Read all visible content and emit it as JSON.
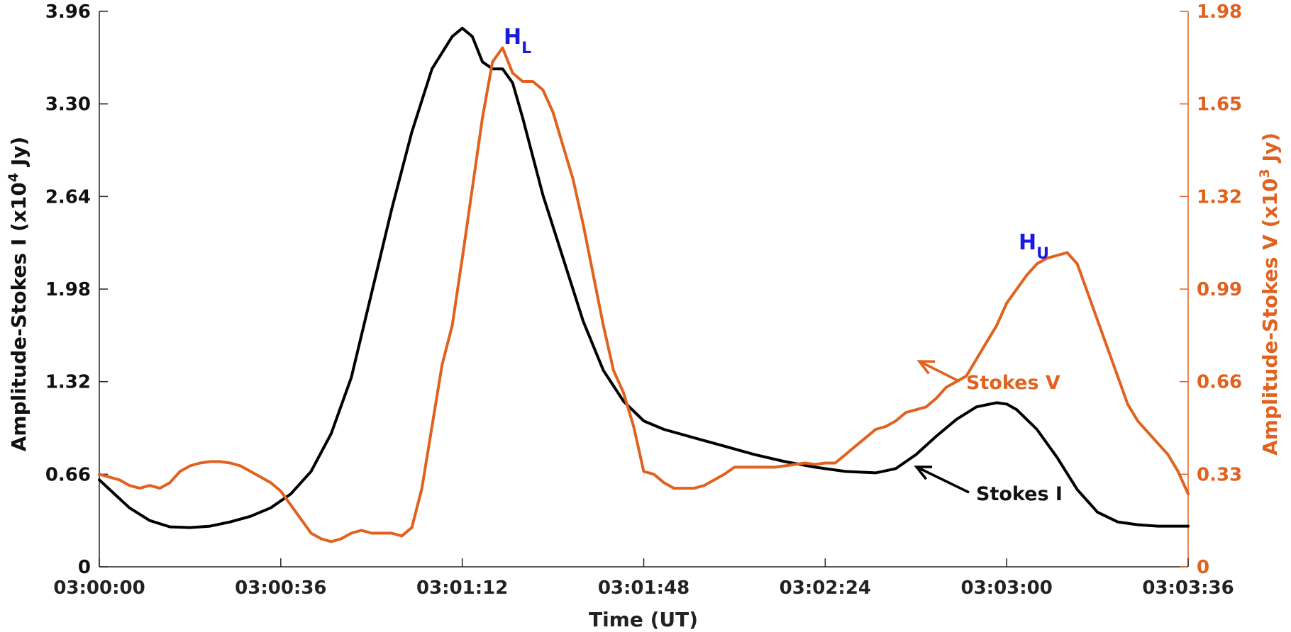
{
  "chart_data": {
    "type": "line",
    "xlabel": "Time (UT)",
    "x_ticks": [
      "03:00:00",
      "03:00:36",
      "03:01:12",
      "03:01:48",
      "03:02:24",
      "03:03:00",
      "03:03:36"
    ],
    "x_range_seconds": [
      0,
      216
    ],
    "y_left": {
      "label_main": "Amplitude-Stokes I (x10",
      "label_exp": "4",
      "label_tail": " Jy)",
      "ticks": [
        "0",
        "0.66",
        "1.32",
        "1.98",
        "2.64",
        "3.30",
        "3.96"
      ],
      "range": [
        0,
        3.96
      ]
    },
    "y_right": {
      "label_main": "Amplitude-Stokes V (x10",
      "label_exp": "3",
      "label_tail": " Jy)",
      "ticks": [
        "0",
        "0.33",
        "0.66",
        "0.99",
        "1.32",
        "1.65",
        "1.98"
      ],
      "range": [
        0,
        1.98
      ]
    },
    "colors": {
      "stokes_i": "#000000",
      "stokes_v": "#e0621e",
      "peak_label": "#1a1adc"
    },
    "grid": false,
    "series": [
      {
        "name": "Stokes I",
        "axis": "left",
        "x": [
          0,
          3,
          6,
          10,
          14,
          18,
          22,
          26,
          30,
          34,
          38,
          42,
          46,
          50,
          54,
          58,
          62,
          66,
          70,
          72,
          74,
          76,
          78,
          80,
          82,
          84,
          88,
          92,
          96,
          100,
          104,
          108,
          112,
          118,
          124,
          130,
          136,
          142,
          148,
          154,
          158,
          162,
          166,
          170,
          174,
          178,
          180,
          182,
          186,
          190,
          194,
          198,
          202,
          206,
          210,
          216
        ],
        "y": [
          0.62,
          0.52,
          0.42,
          0.33,
          0.285,
          0.28,
          0.29,
          0.32,
          0.36,
          0.42,
          0.52,
          0.68,
          0.95,
          1.35,
          1.95,
          2.55,
          3.1,
          3.55,
          3.78,
          3.84,
          3.78,
          3.6,
          3.55,
          3.55,
          3.45,
          3.2,
          2.65,
          2.2,
          1.75,
          1.4,
          1.18,
          1.04,
          0.98,
          0.92,
          0.86,
          0.8,
          0.75,
          0.71,
          0.68,
          0.67,
          0.7,
          0.8,
          0.93,
          1.05,
          1.14,
          1.17,
          1.16,
          1.12,
          0.98,
          0.78,
          0.55,
          0.39,
          0.32,
          0.3,
          0.29,
          0.29
        ]
      },
      {
        "name": "Stokes V",
        "axis": "right",
        "x": [
          0,
          4,
          6,
          8,
          10,
          12,
          14,
          16,
          18,
          20,
          22,
          24,
          26,
          28,
          30,
          32,
          34,
          36,
          38,
          40,
          42,
          44,
          46,
          48,
          50,
          52,
          54,
          56,
          58,
          60,
          62,
          64,
          66,
          68,
          70,
          72,
          74,
          76,
          78,
          80,
          82,
          84,
          86,
          88,
          90,
          92,
          94,
          96,
          98,
          100,
          102,
          104,
          106,
          108,
          110,
          112,
          114,
          116,
          118,
          120,
          122,
          124,
          126,
          128,
          130,
          132,
          134,
          136,
          138,
          140,
          142,
          144,
          146,
          148,
          150,
          152,
          154,
          156,
          158,
          160,
          162,
          164,
          166,
          168,
          170,
          172,
          174,
          176,
          178,
          180,
          182,
          184,
          186,
          188,
          190,
          192,
          194,
          196,
          198,
          200,
          202,
          204,
          206,
          208,
          210,
          212,
          214,
          216
        ],
        "y": [
          0.33,
          0.31,
          0.29,
          0.28,
          0.29,
          0.28,
          0.3,
          0.34,
          0.36,
          0.37,
          0.375,
          0.375,
          0.37,
          0.36,
          0.34,
          0.32,
          0.3,
          0.27,
          0.22,
          0.17,
          0.12,
          0.1,
          0.09,
          0.1,
          0.12,
          0.13,
          0.12,
          0.12,
          0.12,
          0.11,
          0.14,
          0.28,
          0.5,
          0.72,
          0.86,
          1.1,
          1.35,
          1.6,
          1.8,
          1.85,
          1.76,
          1.73,
          1.73,
          1.7,
          1.62,
          1.5,
          1.38,
          1.22,
          1.04,
          0.86,
          0.7,
          0.62,
          0.5,
          0.34,
          0.33,
          0.3,
          0.28,
          0.28,
          0.28,
          0.29,
          0.31,
          0.33,
          0.355,
          0.355,
          0.355,
          0.355,
          0.355,
          0.36,
          0.365,
          0.37,
          0.365,
          0.37,
          0.37,
          0.4,
          0.43,
          0.46,
          0.49,
          0.5,
          0.52,
          0.55,
          0.56,
          0.57,
          0.6,
          0.64,
          0.66,
          0.68,
          0.74,
          0.8,
          0.86,
          0.94,
          0.99,
          1.04,
          1.08,
          1.1,
          1.11,
          1.12,
          1.08,
          0.98,
          0.88,
          0.78,
          0.68,
          0.58,
          0.52,
          0.48,
          0.44,
          0.4,
          0.34,
          0.26
        ]
      }
    ],
    "annotations": [
      {
        "text": "Stokes V",
        "series": "Stokes V"
      },
      {
        "text": "Stokes I",
        "series": "Stokes I"
      }
    ],
    "peak_labels": [
      {
        "main": "H",
        "sub": "L"
      },
      {
        "main": "H",
        "sub": "U"
      }
    ]
  }
}
